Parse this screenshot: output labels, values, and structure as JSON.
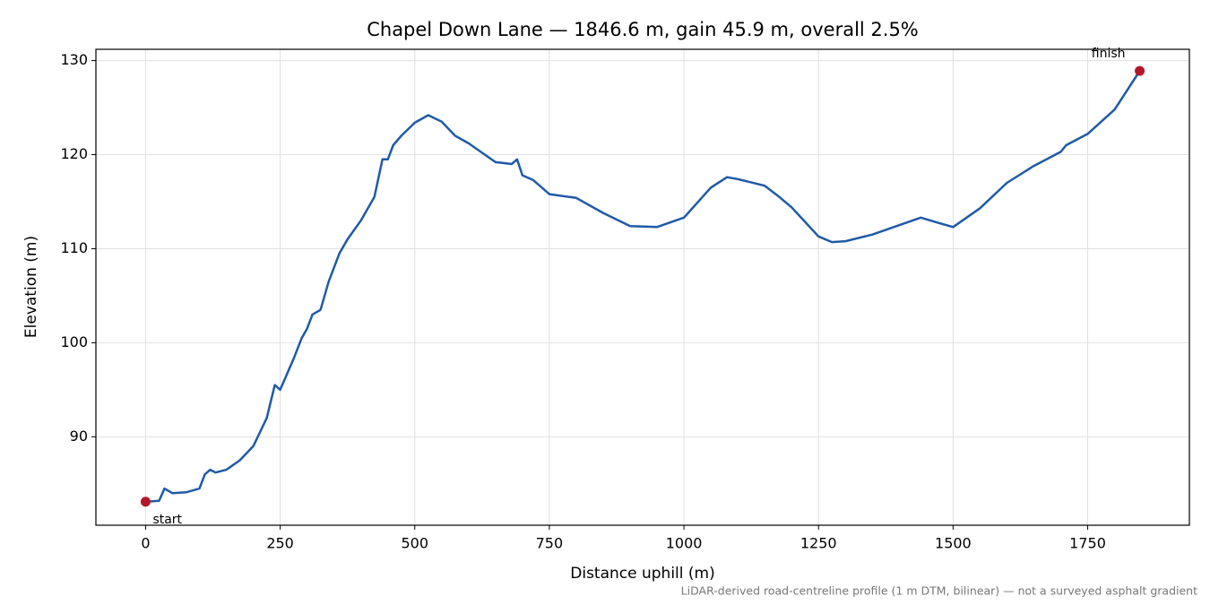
{
  "chart_data": {
    "type": "line",
    "title": "Chapel Down Lane — 1846.6 m, gain 45.9 m, overall 2.5%",
    "x_label": "Distance uphill (m)",
    "y_label": "Elevation (m)",
    "note": "LiDAR-derived road-centreline profile (1 m DTM, bilinear) — not a surveyed asphalt gradient",
    "color": "#1f5aa8",
    "x": [
      0,
      25,
      35,
      50,
      75,
      100,
      110,
      120,
      130,
      150,
      175,
      200,
      225,
      240,
      250,
      275,
      290,
      300,
      310,
      325,
      340,
      360,
      375,
      400,
      425,
      440,
      450,
      460,
      475,
      500,
      525,
      550,
      575,
      600,
      650,
      680,
      690,
      700,
      720,
      750,
      800,
      850,
      900,
      950,
      1000,
      1050,
      1080,
      1100,
      1150,
      1175,
      1200,
      1250,
      1275,
      1300,
      1350,
      1400,
      1440,
      1475,
      1500,
      1550,
      1600,
      1650,
      1700,
      1710,
      1750,
      1800,
      1846.6
    ],
    "values": [
      83.1,
      83.2,
      84.5,
      84.0,
      84.1,
      84.5,
      86.0,
      86.5,
      86.2,
      86.5,
      87.5,
      89.0,
      92.0,
      95.5,
      95.0,
      98.3,
      100.5,
      101.5,
      103.0,
      103.5,
      106.5,
      109.5,
      111.0,
      113.0,
      115.5,
      119.5,
      119.5,
      121.0,
      122.0,
      123.4,
      124.2,
      123.5,
      122.0,
      121.2,
      119.2,
      119.0,
      119.5,
      117.8,
      117.3,
      115.8,
      115.4,
      113.8,
      112.4,
      112.3,
      113.3,
      116.5,
      117.6,
      117.4,
      116.7,
      115.6,
      114.4,
      111.3,
      110.7,
      110.8,
      111.5,
      112.5,
      113.3,
      112.7,
      112.3,
      114.3,
      117.0,
      118.8,
      120.3,
      121.0,
      122.2,
      124.8,
      128.9
    ],
    "annotations": [
      {
        "text": "start",
        "x": 0,
        "y": 83.1,
        "color": "#b5172a"
      },
      {
        "text": "finish",
        "x": 1846.6,
        "y": 128.9,
        "color": "#b5172a"
      }
    ],
    "xlim": [
      -92.3,
      1938.9
    ],
    "ylim": [
      80.6,
      131.2
    ],
    "xticks": [
      0,
      250,
      500,
      750,
      1000,
      1250,
      1500,
      1750
    ],
    "yticks": [
      90,
      100,
      110,
      120,
      130
    ],
    "grid": true
  }
}
